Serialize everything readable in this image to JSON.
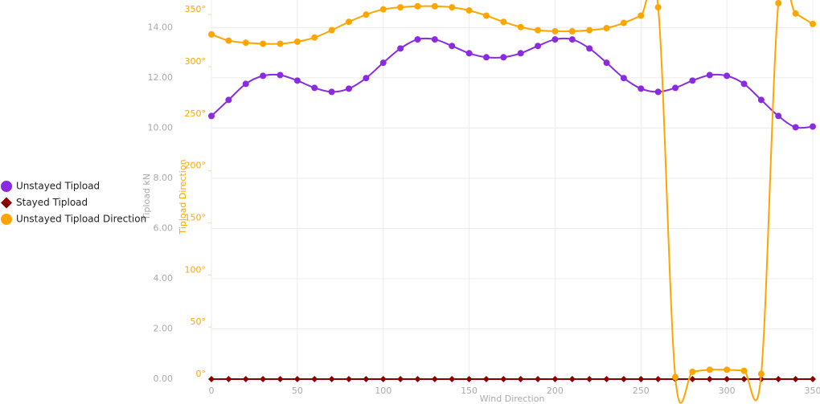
{
  "chart_data": {
    "type": "line",
    "x_label": "Wind Direction",
    "y_label": "Tipload kN",
    "y2_label": "Tipload Direction",
    "x": [
      0,
      10,
      20,
      30,
      40,
      50,
      60,
      70,
      80,
      90,
      100,
      110,
      120,
      130,
      140,
      150,
      160,
      170,
      180,
      190,
      200,
      210,
      220,
      230,
      240,
      250,
      260,
      270,
      280,
      290,
      300,
      310,
      320,
      330,
      340,
      350
    ],
    "series": [
      {
        "name": "Unstayed Tipload",
        "color": "#8a2be2",
        "marker": "circle",
        "values": [
          10.48,
          11.12,
          11.76,
          12.08,
          12.11,
          11.89,
          11.6,
          11.44,
          11.57,
          11.99,
          12.6,
          13.17,
          13.53,
          13.53,
          13.27,
          12.98,
          12.82,
          12.82,
          12.98,
          13.27,
          13.53,
          13.53,
          13.17,
          12.6,
          11.99,
          11.57,
          11.44,
          11.6,
          11.89,
          12.11,
          12.08,
          11.76,
          11.12,
          10.48,
          10.03,
          10.06
        ]
      },
      {
        "name": "Stayed Tipload",
        "color": "#8b0000",
        "marker": "diamond",
        "values": [
          0,
          0,
          0,
          0,
          0,
          0,
          0,
          0,
          0,
          0,
          0,
          0,
          0,
          0,
          0,
          0,
          0,
          0,
          0,
          0,
          0,
          0,
          0,
          0,
          0,
          0,
          0,
          0,
          0,
          0,
          0,
          0,
          0,
          0,
          0,
          0
        ]
      },
      {
        "name": "Unstayed Tipload Direction",
        "color": "#ffa500",
        "marker": "circle",
        "axis": "y2",
        "values": [
          331,
          325,
          323,
          322,
          322,
          324,
          328,
          335,
          343,
          350,
          355,
          357,
          358,
          358,
          357,
          354,
          349,
          343,
          338,
          335,
          334,
          334,
          335,
          337,
          342,
          349,
          357,
          2,
          7,
          9,
          9,
          8,
          5,
          361,
          351,
          341
        ]
      }
    ],
    "xlim": [
      0,
      350
    ],
    "xticks": [
      0,
      50,
      100,
      150,
      200,
      250,
      300,
      350
    ],
    "ylim": [
      0,
      15.1
    ],
    "yticks": [
      {
        "value": 0,
        "label": "0.00"
      },
      {
        "value": 2,
        "label": "2.00"
      },
      {
        "value": 4,
        "label": "4.00"
      },
      {
        "value": 6,
        "label": "6.00"
      },
      {
        "value": 8,
        "label": "8.00"
      },
      {
        "value": 10,
        "label": "10.00"
      },
      {
        "value": 12,
        "label": "12.00"
      },
      {
        "value": 14,
        "label": "14.00"
      }
    ],
    "y2lim": [
      0,
      364
    ],
    "y2ticks": [
      {
        "value": 0,
        "label": "0°"
      },
      {
        "value": 50,
        "label": "50°"
      },
      {
        "value": 100,
        "label": "100°"
      },
      {
        "value": 150,
        "label": "150°"
      },
      {
        "value": 200,
        "label": "200°"
      },
      {
        "value": 250,
        "label": "250°"
      },
      {
        "value": 300,
        "label": "300°"
      },
      {
        "value": 350,
        "label": "350°"
      }
    ],
    "grid": true,
    "legend": "left"
  }
}
